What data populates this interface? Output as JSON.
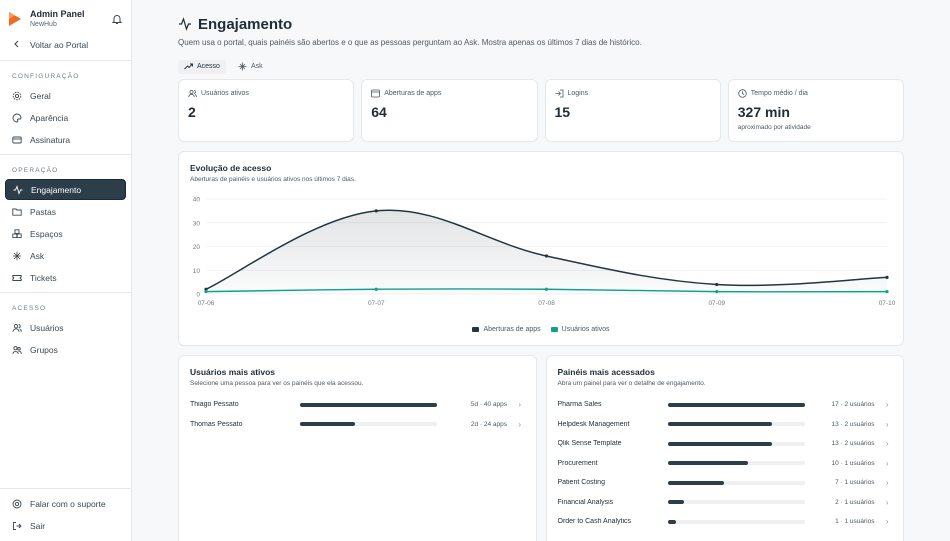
{
  "sidebar": {
    "brand_title": "Admin Panel",
    "brand_sub": "NewHub",
    "back_label": "Voltar ao Portal",
    "sections": [
      {
        "label": "CONFIGURAÇÃO",
        "items": [
          {
            "label": "Geral",
            "icon": "gear-icon"
          },
          {
            "label": "Aparência",
            "icon": "palette-icon"
          },
          {
            "label": "Assinatura",
            "icon": "credit-card-icon"
          }
        ]
      },
      {
        "label": "OPERAÇÃO",
        "items": [
          {
            "label": "Engajamento",
            "icon": "activity-icon",
            "active": true
          },
          {
            "label": "Pastas",
            "icon": "folder-icon"
          },
          {
            "label": "Espaços",
            "icon": "boxes-icon"
          },
          {
            "label": "Ask",
            "icon": "sparkle-icon"
          },
          {
            "label": "Tickets",
            "icon": "ticket-icon"
          }
        ]
      },
      {
        "label": "ACESSO",
        "items": [
          {
            "label": "Usuários",
            "icon": "users-icon"
          },
          {
            "label": "Grupos",
            "icon": "group-icon"
          }
        ]
      }
    ],
    "support_label": "Falar com o suporte",
    "logout_label": "Sair"
  },
  "header": {
    "title": "Engajamento",
    "subtitle": "Quem usa o portal, quais painéis são abertos e o que as pessoas perguntam ao Ask. Mostra apenas os últimos 7 dias de histórico."
  },
  "tabs": [
    {
      "label": "Acesso",
      "active": true
    },
    {
      "label": "Ask",
      "active": false
    }
  ],
  "kpis": [
    {
      "label": "Usuários ativos",
      "value": "2",
      "note": "",
      "icon": "users-icon"
    },
    {
      "label": "Aberturas de apps",
      "value": "64",
      "note": "",
      "icon": "app-window-icon"
    },
    {
      "label": "Logins",
      "value": "15",
      "note": "",
      "icon": "login-icon"
    },
    {
      "label": "Tempo médio / dia",
      "value": "327 min",
      "note": "aproximado por atividade",
      "icon": "clock-icon"
    }
  ],
  "evolution": {
    "title": "Evolução de acesso",
    "subtitle": "Aberturas de painéis e usuários ativos nos últimos 7 dias."
  },
  "chart_data": {
    "type": "area",
    "x": [
      "07-06",
      "07-07",
      "07-08",
      "07-09",
      "07-10"
    ],
    "ylim": [
      0,
      40
    ],
    "yticks": [
      "0",
      "10",
      "20",
      "30",
      "40"
    ],
    "grid": true,
    "legend_position": "bottom",
    "series": [
      {
        "name": "Aberturas de apps",
        "values": [
          2,
          35,
          16,
          4,
          7
        ],
        "color": "#233540"
      },
      {
        "name": "Usuários ativos",
        "values": [
          1,
          2,
          2,
          1,
          1
        ],
        "color": "#12a08e"
      }
    ]
  },
  "top_users": {
    "title": "Usuários mais ativos",
    "subtitle": "Selecione uma pessoa para ver os painéis que ela acessou.",
    "rows": [
      {
        "name": "Thiago Pessato",
        "meta": "5d · 40 apps",
        "fraction": 1.0
      },
      {
        "name": "Thomas Pessato",
        "meta": "2d · 24 apps",
        "fraction": 0.4
      }
    ]
  },
  "top_panels": {
    "title": "Painéis mais acessados",
    "subtitle": "Abra um painel para ver o detalhe de engajamento.",
    "rows": [
      {
        "name": "Pharma Sales",
        "meta": "17 · 2 usuários",
        "fraction": 1.0
      },
      {
        "name": "Helpdesk Management",
        "meta": "13 · 2 usuários",
        "fraction": 0.765
      },
      {
        "name": "Qlik Sense Template",
        "meta": "13 · 2 usuários",
        "fraction": 0.765
      },
      {
        "name": "Procurement",
        "meta": "10 · 1 usuários",
        "fraction": 0.588
      },
      {
        "name": "Patient Costing",
        "meta": "7 · 1 usuários",
        "fraction": 0.412
      },
      {
        "name": "Financial Analysis",
        "meta": "2 · 1 usuários",
        "fraction": 0.118
      },
      {
        "name": "Order to Cash Analytics",
        "meta": "1 · 1 usuários",
        "fraction": 0.059
      }
    ]
  }
}
